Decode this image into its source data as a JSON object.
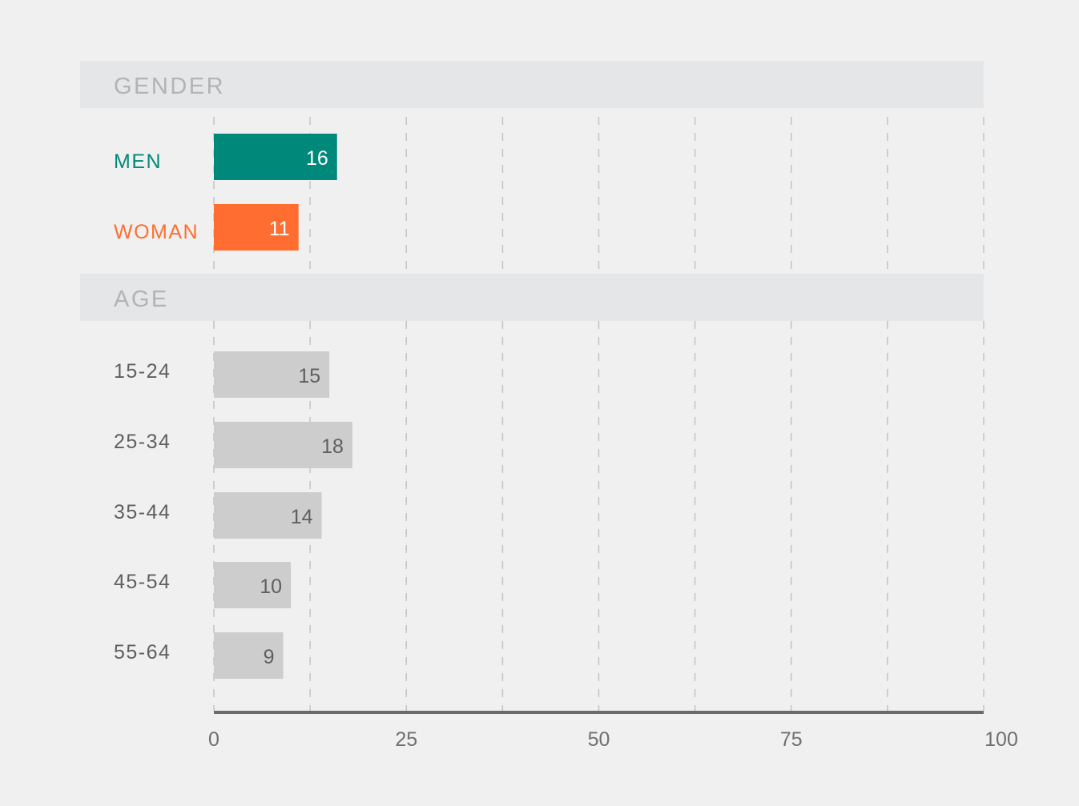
{
  "chart_data": {
    "type": "bar",
    "orientation": "horizontal",
    "title": "",
    "xlabel": "",
    "ylabel": "",
    "xlim": [
      0,
      100
    ],
    "x_ticks": [
      0,
      25,
      50,
      75,
      100
    ],
    "grid": true,
    "legend": "none",
    "sections": [
      {
        "label": "GENDER",
        "categories": [
          {
            "label": "MEN",
            "value": 16,
            "color": "#00897b",
            "label_color": "#00897b",
            "value_color": "#ffffff"
          },
          {
            "label": "WOMAN",
            "value": 11,
            "color": "#ff6e30",
            "label_color": "#ff6e30",
            "value_color": "#ffffff"
          }
        ]
      },
      {
        "label": "AGE",
        "categories": [
          {
            "label": "15-24",
            "value": 15,
            "color": "#cdcdcd",
            "label_color": "#5f5f5f",
            "value_color": "#5f5f5f"
          },
          {
            "label": "25-34",
            "value": 18,
            "color": "#cdcdcd",
            "label_color": "#5f5f5f",
            "value_color": "#5f5f5f"
          },
          {
            "label": "35-44",
            "value": 14,
            "color": "#cdcdcd",
            "label_color": "#5f5f5f",
            "value_color": "#5f5f5f"
          },
          {
            "label": "45-54",
            "value": 10,
            "color": "#cdcdcd",
            "label_color": "#5f5f5f",
            "value_color": "#5f5f5f"
          },
          {
            "label": "55-64",
            "value": 9,
            "color": "#cdcdcd",
            "label_color": "#5f5f5f",
            "value_color": "#5f5f5f"
          }
        ]
      }
    ]
  }
}
